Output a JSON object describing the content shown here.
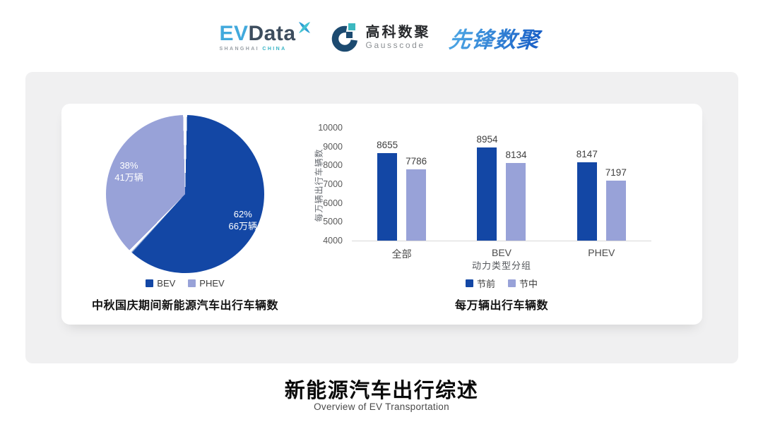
{
  "header": {
    "evdata": {
      "part1": "EV",
      "part2": "Data",
      "sub1": "SHANGHAI",
      "sub2": "CHINA"
    },
    "gausscode": {
      "cn": "高科数聚",
      "en": "Gausscode"
    },
    "pioneer": {
      "text": "先锋数聚"
    }
  },
  "colors": {
    "series_dark_blue": "#1347a5",
    "series_light_purple": "#98a2d8",
    "evdata_blue": "#42a9dc",
    "evdata_slate": "#3d4d5e",
    "evdata_teal": "#36b3c4",
    "gauss_navy": "#1c4a70",
    "gauss_teal": "#3cb8c0",
    "pioneer_blue": "#2e7fd0",
    "panel_gray": "#f0f0f1",
    "axis_line_gray": "#d9d9d9"
  },
  "chart_data": [
    {
      "type": "pie",
      "title": "中秋国庆期间新能源汽车出行车辆数",
      "legend_position": "bottom",
      "start_angle_deg": 0,
      "slices": [
        {
          "name": "BEV",
          "pct": 62,
          "label_line1": "62%",
          "label_line2": "66万辆",
          "color": "#1347a5"
        },
        {
          "name": "PHEV",
          "pct": 38,
          "label_line1": "38%",
          "label_line2": "41万辆",
          "color": "#98a2d8"
        }
      ]
    },
    {
      "type": "bar",
      "title": "每万辆出行车辆数",
      "xlabel": "动力类型分组",
      "ylabel": "每万辆出行车辆数",
      "categories": [
        "全部",
        "BEV",
        "PHEV"
      ],
      "series": [
        {
          "name": "节前",
          "color": "#1347a5",
          "values": [
            8655,
            8954,
            8147
          ]
        },
        {
          "name": "节中",
          "color": "#98a2d8",
          "values": [
            7786,
            8134,
            7197
          ]
        }
      ],
      "ylim": [
        4000,
        10000
      ],
      "yticks": [
        10000,
        9000,
        8000,
        7000,
        6000,
        5000,
        4000
      ],
      "grid": false,
      "legend_position": "bottom"
    }
  ],
  "footer": {
    "title": "新能源汽车出行综述",
    "subtitle": "Overview of EV Transportation"
  }
}
